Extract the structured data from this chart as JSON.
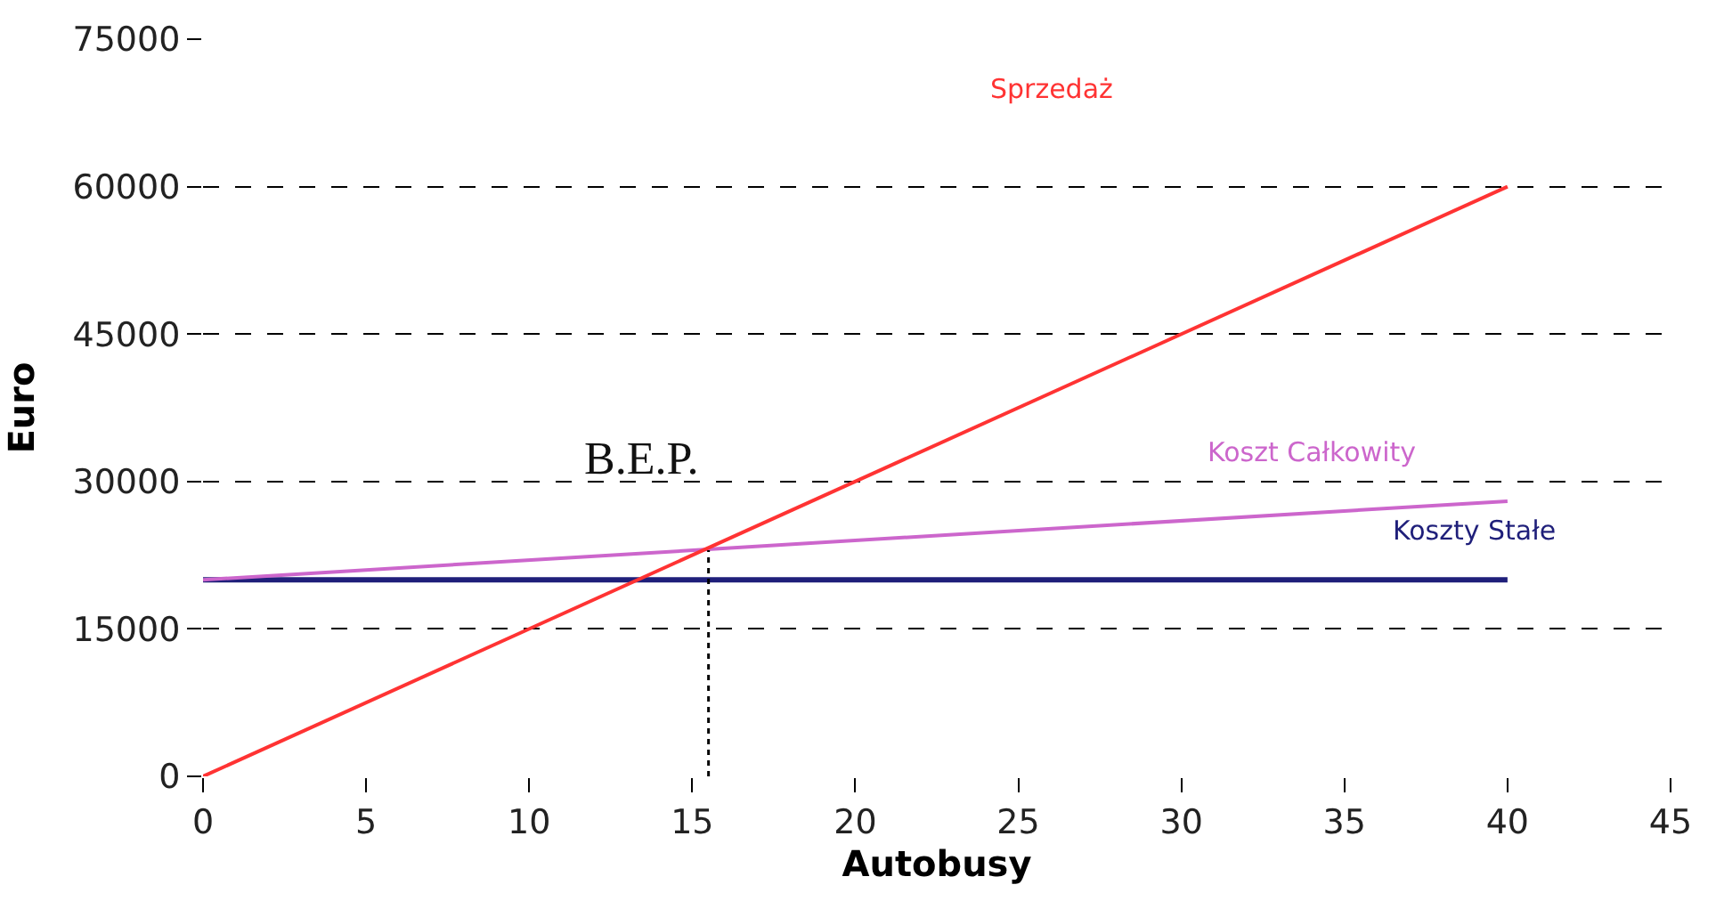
{
  "chart_data": {
    "type": "line",
    "xlabel": "Autobusy",
    "ylabel": "Euro",
    "xlim": [
      0,
      45
    ],
    "xticks": [
      0,
      5,
      10,
      15,
      20,
      25,
      30,
      35,
      40,
      45
    ],
    "ylim": [
      0,
      75000
    ],
    "yticks": [
      0,
      15000,
      30000,
      45000,
      60000,
      75000
    ],
    "grid": "y",
    "legend": false,
    "marker": "none",
    "line_style": "solid",
    "series": [
      {
        "name": "Sprzedaż",
        "color": "#ff3333",
        "x": [
          0,
          40
        ],
        "values": [
          0,
          60000
        ]
      },
      {
        "name": "Koszt Całkowity",
        "color": "#cc66cc",
        "x": [
          0,
          40
        ],
        "values": [
          20000,
          28000
        ]
      },
      {
        "name": "Koszty Stałe",
        "color": "#1f1f7a",
        "x": [
          0,
          40
        ],
        "values": [
          20000,
          20000
        ]
      },
      {
        "color": "#000000",
        "x": [
          15.5,
          15.5
        ],
        "values": [
          0,
          23000
        ],
        "line_style": "dotted"
      }
    ],
    "annotations": [
      {
        "text": "B.E.P.",
        "x": 15.5,
        "y": 23000
      }
    ]
  }
}
